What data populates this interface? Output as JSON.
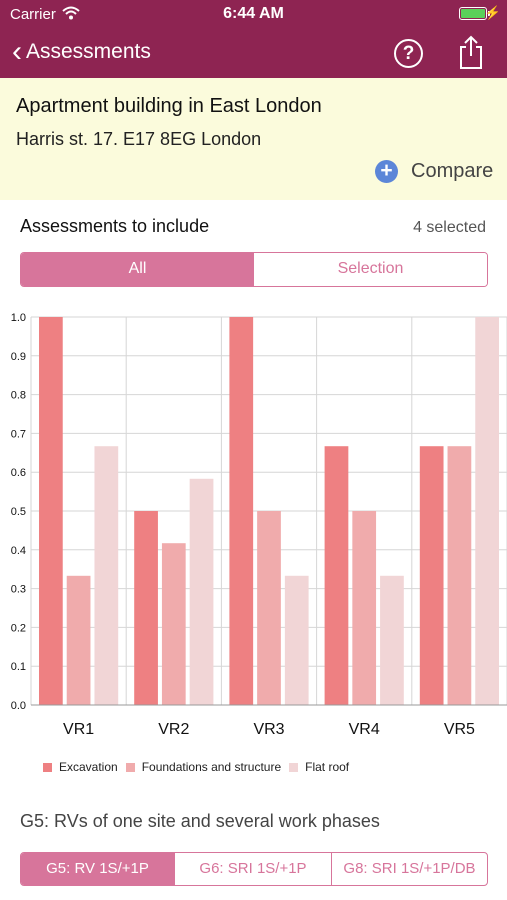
{
  "status_bar": {
    "carrier": "Carrier",
    "time": "6:44 AM",
    "battery_color": "#5ad15a"
  },
  "nav": {
    "back_label": "Assessments",
    "help_glyph": "?",
    "icons": [
      "chevron-left-icon",
      "help-icon",
      "share-icon"
    ],
    "bar_color": "#8e2452"
  },
  "site": {
    "title": "Apartment building in East London",
    "address": "Harris st. 17. E17 8EG London",
    "compare_label": "Compare",
    "compare_glyph": "+"
  },
  "assessments": {
    "label": "Assessments to include",
    "count": "4 selected",
    "tabs": [
      {
        "label": "All",
        "active": true
      },
      {
        "label": "Selection",
        "active": false
      }
    ]
  },
  "chart_data": {
    "type": "bar",
    "categories": [
      "VR1",
      "VR2",
      "VR3",
      "VR4",
      "VR5"
    ],
    "series": [
      {
        "name": "Excavation",
        "color": "#ee8082",
        "values": [
          1.0,
          0.5,
          1.0,
          0.667,
          0.667
        ]
      },
      {
        "name": "Foundations and structure",
        "color": "#f0abac",
        "values": [
          0.333,
          0.417,
          0.5,
          0.5,
          0.667
        ]
      },
      {
        "name": "Flat roof",
        "color": "#f1d5d6",
        "values": [
          0.667,
          0.583,
          0.333,
          0.333,
          1.0
        ]
      }
    ],
    "ylim": [
      0,
      1.0
    ],
    "yticks": [
      "0.0",
      "0.1",
      "0.2",
      "0.3",
      "0.4",
      "0.5",
      "0.6",
      "0.7",
      "0.8",
      "0.9",
      "1.0"
    ],
    "grid": true,
    "legend": "bottom-left"
  },
  "groups": {
    "title": "G5: RVs of one site and several work phases",
    "tabs": [
      {
        "label": "G5: RV 1S/+1P",
        "active": true
      },
      {
        "label": "G6: SRI 1S/+1P",
        "active": false
      },
      {
        "label": "G8: SRI 1S/+1P/DB",
        "active": false
      }
    ]
  },
  "accent_color": "#d7759b"
}
